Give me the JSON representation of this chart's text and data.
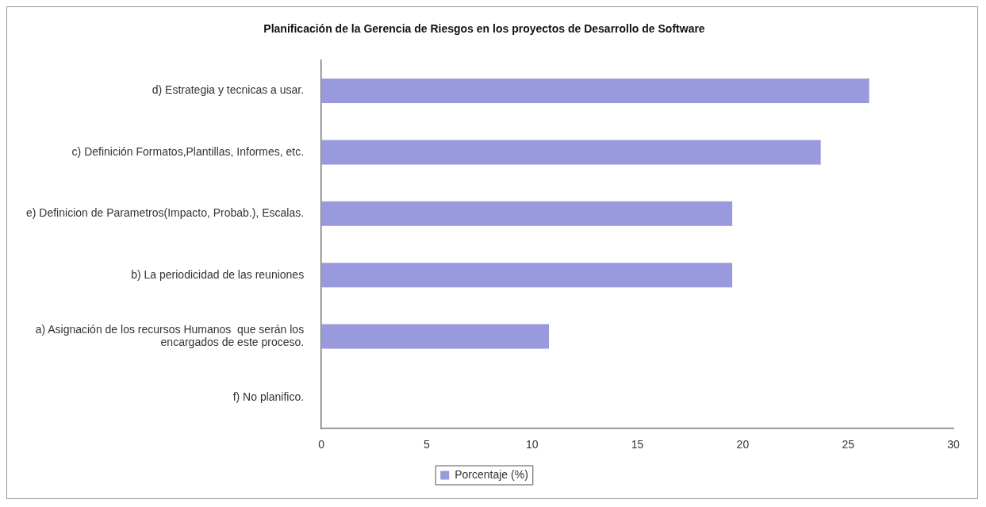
{
  "chart_data": {
    "type": "bar",
    "orientation": "horizontal",
    "title": "Planificación de la Gerencia de Riesgos en los proyectos de Desarrollo de Software",
    "categories": [
      "d) Estrategia y tecnicas a usar.",
      "c) Definición Formatos,Plantillas, Informes, etc.",
      "e) Definicion de Parametros(Impacto, Probab.), Escalas.",
      "b) La periodicidad de las reuniones",
      "a) Asignación de los recursos Humanos  que serán los encargados de este proceso.",
      "f) No planifico."
    ],
    "series": [
      {
        "name": "Porcentaje (%)",
        "color": "#9999dd",
        "values": [
          26,
          23.7,
          19.5,
          19.5,
          10.8,
          0
        ]
      }
    ],
    "xlim": [
      0,
      30
    ],
    "xticks": [
      0,
      5,
      10,
      15,
      20,
      25,
      30
    ],
    "grid": false,
    "legend": "bottom"
  }
}
